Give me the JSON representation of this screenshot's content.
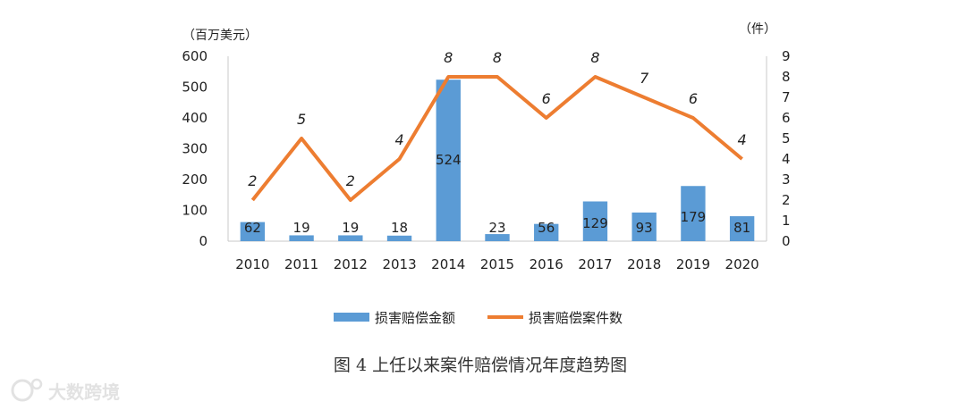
{
  "chart_data": {
    "type": "bar",
    "categories": [
      "2010",
      "2011",
      "2012",
      "2013",
      "2014",
      "2015",
      "2016",
      "2017",
      "2018",
      "2019",
      "2020"
    ],
    "series": [
      {
        "name": "损害赔偿金额",
        "type": "bar",
        "axis": "left",
        "values": [
          62,
          19,
          19,
          18,
          524,
          23,
          56,
          129,
          93,
          179,
          81
        ],
        "color": "#5b9bd5"
      },
      {
        "name": "损害赔偿案件数",
        "type": "line",
        "axis": "right",
        "values": [
          2,
          5,
          2,
          4,
          8,
          8,
          6,
          8,
          7,
          6,
          4
        ],
        "color": "#ed7d31"
      }
    ],
    "y_left": {
      "unit": "（百万美元）",
      "ylim": [
        0,
        600
      ],
      "ticks": [
        "600",
        "500",
        "400",
        "300",
        "200",
        "100",
        "0"
      ]
    },
    "y_right": {
      "unit": "（件）",
      "ylim": [
        0,
        9
      ],
      "ticks": [
        "9",
        "8",
        "7",
        "6",
        "5",
        "4",
        "3",
        "2",
        "1",
        "0"
      ]
    },
    "legend": {
      "position": "bottom"
    },
    "title": "图 4  上任以来案件赔偿情况年度趋势图"
  },
  "watermark": {
    "text": "大数跨境"
  }
}
